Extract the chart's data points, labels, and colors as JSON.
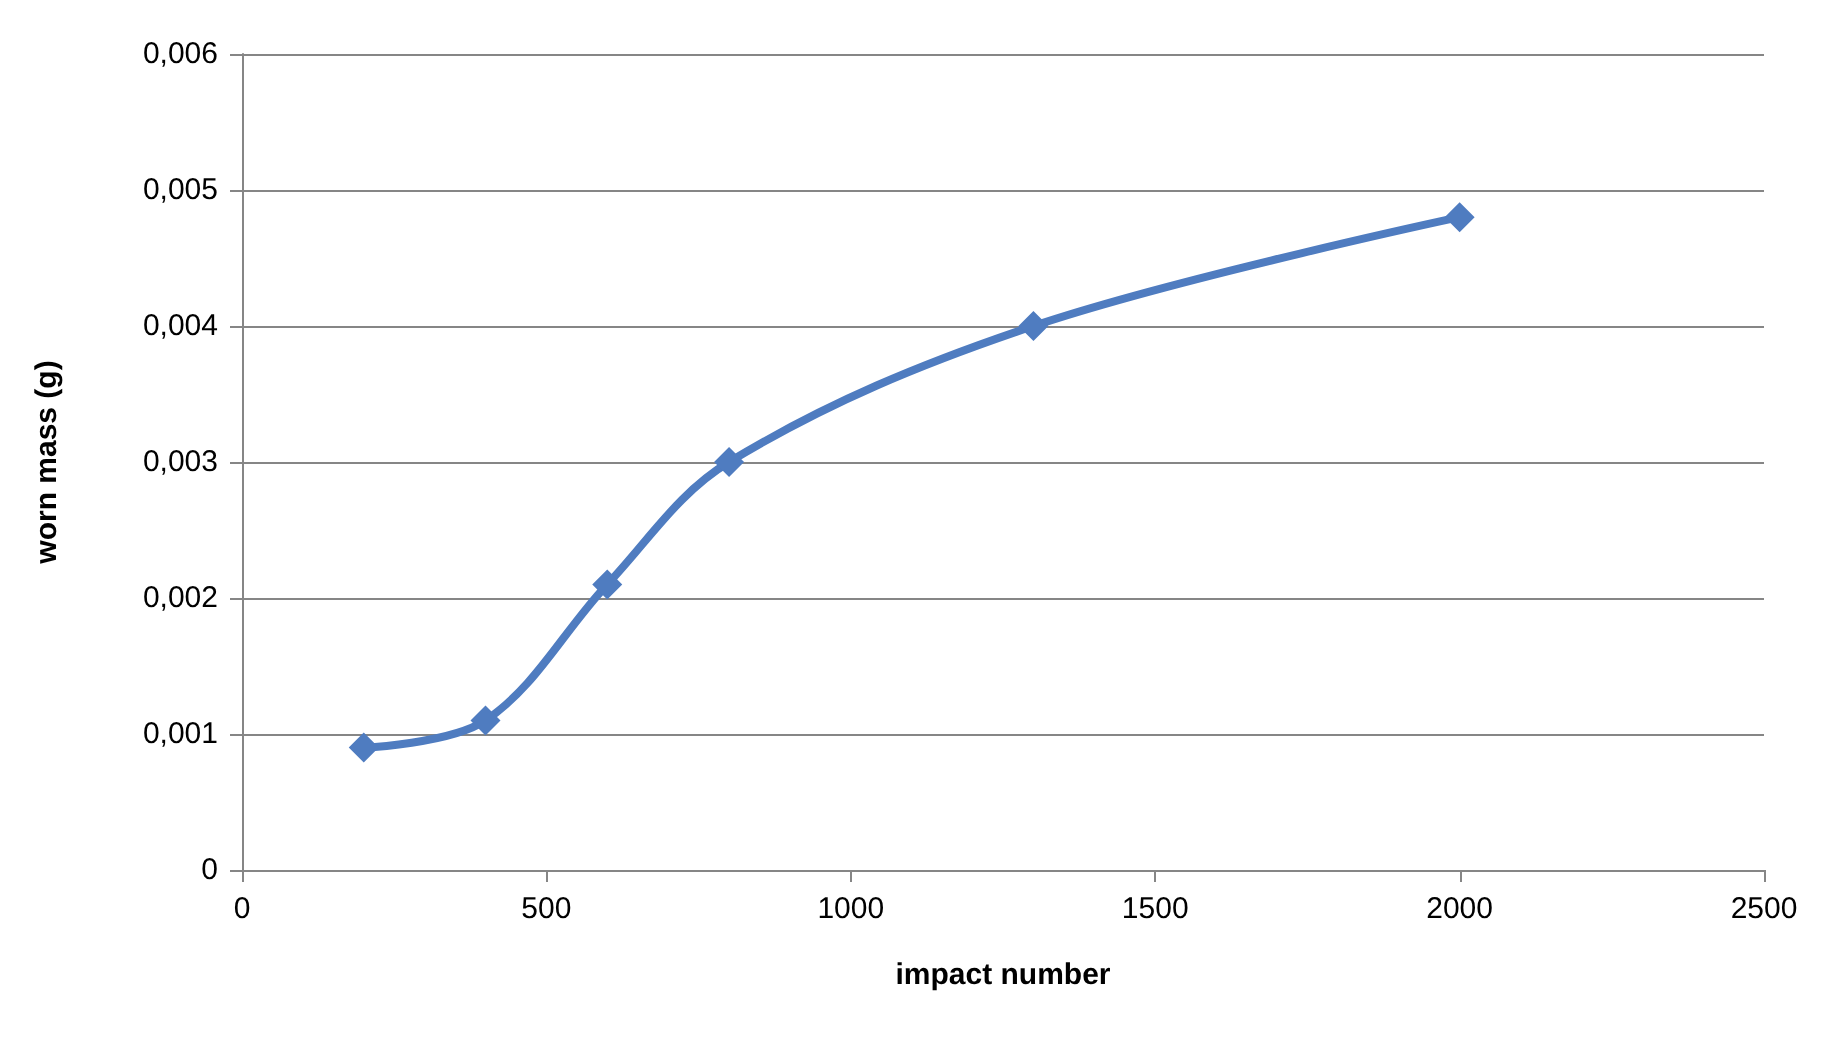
{
  "chart_data": {
    "type": "line",
    "xlabel": "impact number",
    "ylabel": "worn mass (g)",
    "x": [
      200,
      400,
      600,
      800,
      1300,
      2000
    ],
    "series": [
      {
        "color": "#4f7cc0",
        "values": [
          0.0009,
          0.0011,
          0.0021,
          0.003,
          0.004,
          0.0048
        ]
      }
    ],
    "xlim": [
      0,
      2500
    ],
    "xticks": [
      0,
      500,
      1000,
      1500,
      2000,
      2500
    ],
    "ylim": [
      0,
      0.006
    ],
    "yticks": [
      {
        "value": 0,
        "label": "0"
      },
      {
        "value": 0.001,
        "label": "0,001"
      },
      {
        "value": 0.002,
        "label": "0,002"
      },
      {
        "value": 0.003,
        "label": "0,003"
      },
      {
        "value": 0.004,
        "label": "0,004"
      },
      {
        "value": 0.005,
        "label": "0,005"
      },
      {
        "value": 0.006,
        "label": "0,006"
      }
    ],
    "grid": "y",
    "marker": "diamond",
    "line_style": "solid"
  }
}
